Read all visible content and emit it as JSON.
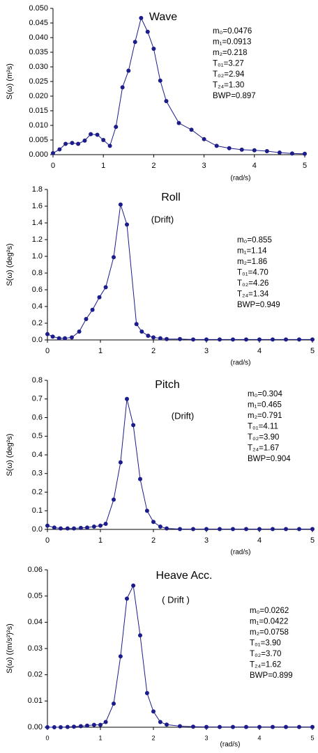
{
  "chart_data": [
    {
      "type": "line",
      "title": "Wave",
      "ylabel": "S(ω) (m²s)",
      "xlabel": "(rad/s)",
      "annotations": [
        "m₀=0.0476",
        "m₁=0.0913",
        "m₂=0.218",
        "T₀₁=3.27",
        "T₀₂=2.94",
        "T₂₄=1.30",
        "BWP=0.897"
      ],
      "x": [
        0,
        0.13,
        0.25,
        0.38,
        0.5,
        0.63,
        0.75,
        0.88,
        1.0,
        1.13,
        1.25,
        1.38,
        1.5,
        1.63,
        1.75,
        1.88,
        2.0,
        2.13,
        2.25,
        2.5,
        2.75,
        3.0,
        3.25,
        3.5,
        3.75,
        4.0,
        4.25,
        4.5,
        4.75,
        5.0
      ],
      "series": [
        {
          "color": "#1c1c8a",
          "values": [
            0.0005,
            0.0018,
            0.0037,
            0.004,
            0.0037,
            0.0048,
            0.007,
            0.0068,
            0.005,
            0.003,
            0.0095,
            0.023,
            0.0287,
            0.0385,
            0.0467,
            0.042,
            0.0362,
            0.0253,
            0.0183,
            0.0108,
            0.0085,
            0.0053,
            0.003,
            0.0022,
            0.0017,
            0.0015,
            0.0012,
            0.0007,
            0.0004,
            0.0003
          ]
        }
      ],
      "xlim": [
        0,
        5
      ],
      "xticks": [
        0,
        1,
        2,
        3,
        4,
        5
      ],
      "ylim": [
        0,
        0.05
      ],
      "yticks": [
        {
          "value": 0,
          "label": "0.000"
        },
        {
          "value": 0.005,
          "label": "0.005"
        },
        {
          "value": 0.01,
          "label": "0.010"
        },
        {
          "value": 0.015,
          "label": "0.015"
        },
        {
          "value": 0.02,
          "label": "0.020"
        },
        {
          "value": 0.025,
          "label": "0.025"
        },
        {
          "value": 0.03,
          "label": "0.030"
        },
        {
          "value": 0.035,
          "label": "0.035"
        },
        {
          "value": 0.04,
          "label": "0.040"
        },
        {
          "value": 0.045,
          "label": "0.045"
        },
        {
          "value": 0.05,
          "label": "0.050"
        }
      ]
    },
    {
      "type": "line",
      "title": "Roll",
      "subtitle": "(Drift)",
      "ylabel": "S(ω) (deg²s)",
      "xlabel": "(rad/s)",
      "annotations": [
        "m₀=0.855",
        "m₁=1.14",
        "m₂=1.86",
        "T₀₁=4.70",
        "T₀₂=4.26",
        "T₂₄=1.34",
        "BWP=0.949"
      ],
      "x": [
        0,
        0.1,
        0.22,
        0.33,
        0.46,
        0.6,
        0.73,
        0.85,
        0.98,
        1.1,
        1.25,
        1.38,
        1.5,
        1.68,
        1.78,
        1.9,
        2.0,
        2.13,
        2.25,
        2.5,
        2.75,
        3.0,
        3.25,
        3.5,
        3.75,
        4.0,
        4.25,
        4.5,
        4.75,
        5.0
      ],
      "series": [
        {
          "color": "#1c1c8a",
          "values": [
            0.07,
            0.04,
            0.02,
            0.02,
            0.03,
            0.1,
            0.25,
            0.36,
            0.51,
            0.63,
            0.99,
            1.62,
            1.38,
            0.19,
            0.1,
            0.05,
            0.03,
            0.02,
            0.01,
            0.01,
            0.005,
            0.005,
            0.005,
            0.005,
            0.005,
            0.005,
            0.005,
            0.005,
            0.005,
            0.005
          ]
        }
      ],
      "xlim": [
        0,
        5
      ],
      "xticks": [
        0,
        1,
        2,
        3,
        4,
        5
      ],
      "ylim": [
        0,
        1.8
      ],
      "yticks": [
        {
          "value": 0,
          "label": "0.0"
        },
        {
          "value": 0.2,
          "label": "0.2"
        },
        {
          "value": 0.4,
          "label": "0.4"
        },
        {
          "value": 0.6,
          "label": "0.6"
        },
        {
          "value": 0.8,
          "label": "0.8"
        },
        {
          "value": 1,
          "label": "1.0"
        },
        {
          "value": 1.2,
          "label": "1.2"
        },
        {
          "value": 1.4,
          "label": "1.4"
        },
        {
          "value": 1.6,
          "label": "1.6"
        },
        {
          "value": 1.8,
          "label": "1.8"
        }
      ]
    },
    {
      "type": "line",
      "title": "Pitch",
      "subtitle": "(Drift)",
      "ylabel": "S(ω) (deg²s)",
      "xlabel": "(rad/s)",
      "annotations": [
        "m₀=0.304",
        "m₁=0.465",
        "m₂=0.791",
        "T₀₁=4.11",
        "T₀₂=3.90",
        "T₂₄=1.67",
        "BWP=0.904"
      ],
      "x": [
        0,
        0.13,
        0.25,
        0.38,
        0.5,
        0.63,
        0.75,
        0.88,
        1.0,
        1.1,
        1.25,
        1.38,
        1.5,
        1.62,
        1.75,
        1.88,
        2.0,
        2.13,
        2.25,
        2.5,
        2.75,
        3.0,
        3.25,
        3.5,
        3.75,
        4.0,
        4.25,
        4.5,
        4.75,
        5.0
      ],
      "series": [
        {
          "color": "#1c1c8a",
          "values": [
            0.02,
            0.01,
            0.005,
            0.005,
            0.005,
            0.008,
            0.01,
            0.015,
            0.02,
            0.03,
            0.16,
            0.36,
            0.7,
            0.56,
            0.27,
            0.1,
            0.04,
            0.015,
            0.005,
            0.002,
            0.002,
            0.002,
            0.002,
            0.002,
            0.002,
            0.002,
            0.002,
            0.002,
            0.002,
            0.002
          ]
        }
      ],
      "xlim": [
        0,
        5
      ],
      "xticks": [
        0,
        1,
        2,
        3,
        4,
        5
      ],
      "ylim": [
        0,
        0.8
      ],
      "yticks": [
        {
          "value": 0,
          "label": "0.0"
        },
        0.1,
        0.2,
        0.3,
        0.4,
        0.5,
        0.6,
        0.7,
        0.8
      ]
    },
    {
      "type": "line",
      "title": "Heave Acc.",
      "subtitle": "( Drift )",
      "ylabel": "S(ω) ((m/s²)²s)",
      "xlabel": "(rad/s)",
      "annotations": [
        "m₀=0.0262",
        "m₁=0.0422",
        "m₂=0.0758",
        "T₀₁=3.90",
        "T₀₂=3.70",
        "T₂₄=1.62",
        "BWP=0.899"
      ],
      "x": [
        0,
        0.13,
        0.25,
        0.38,
        0.5,
        0.63,
        0.75,
        0.88,
        1.0,
        1.1,
        1.25,
        1.38,
        1.5,
        1.62,
        1.75,
        1.88,
        2.0,
        2.13,
        2.25,
        2.5,
        2.75,
        3.0,
        3.25,
        3.5,
        3.75,
        4.0,
        4.25,
        4.5,
        4.75,
        5.0
      ],
      "series": [
        {
          "color": "#1c1c8a",
          "values": [
            0,
            0,
            0,
            0.0001,
            0.0002,
            0.0004,
            0.0006,
            0.0009,
            0.0009,
            0.002,
            0.009,
            0.027,
            0.049,
            0.054,
            0.035,
            0.013,
            0.006,
            0.002,
            0.001,
            0.0004,
            0.0002,
            0.0001,
            0.0001,
            0.0001,
            0.0001,
            0.0001,
            0.0001,
            0.0001,
            0.0001,
            0.0001
          ]
        }
      ],
      "xlim": [
        0,
        5
      ],
      "xticks": [
        0,
        1,
        2,
        3,
        4,
        5
      ],
      "ylim": [
        0,
        0.06
      ],
      "yticks": [
        {
          "value": 0,
          "label": "0.00"
        },
        {
          "value": 0.01,
          "label": "0.01"
        },
        {
          "value": 0.02,
          "label": "0.02"
        },
        {
          "value": 0.03,
          "label": "0.03"
        },
        {
          "value": 0.04,
          "label": "0.04"
        },
        {
          "value": 0.05,
          "label": "0.05"
        },
        {
          "value": 0.06,
          "label": "0.06"
        }
      ]
    }
  ]
}
